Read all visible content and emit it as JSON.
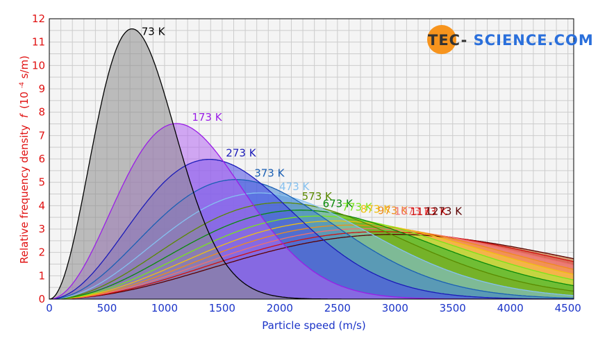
{
  "logo": {
    "part_a": "TEC-",
    "part_b": "SCIENCE.COM",
    "accent": "#f7941d"
  },
  "chart_data": {
    "type": "area",
    "xlabel": "Particle speed (m/s)",
    "ylabel_main": "Relative frequency density",
    "ylabel_f": "f",
    "ylabel_unit_pre": "(10",
    "ylabel_exp": "-4",
    "ylabel_unit_post": " s/m)",
    "xlim": [
      0,
      4550
    ],
    "ylim": [
      0,
      12
    ],
    "x_ticks": [
      0,
      500,
      1000,
      1500,
      2000,
      2500,
      3000,
      3500,
      4000,
      4500
    ],
    "y_ticks": [
      0,
      1,
      2,
      3,
      4,
      5,
      6,
      7,
      8,
      9,
      10,
      11,
      12
    ],
    "grid": true,
    "peak_scale_k": 84.0,
    "series": [
      {
        "name": "73 K",
        "temperature": 73,
        "color": "#000000",
        "fill": "#8c8c8c"
      },
      {
        "name": "173 K",
        "temperature": 173,
        "color": "#9a1ee6",
        "fill": "#b266f0"
      },
      {
        "name": "273 K",
        "temperature": 273,
        "color": "#1a1ab8",
        "fill": "#4a4ae6"
      },
      {
        "name": "373 K",
        "temperature": 373,
        "color": "#1a5fb4",
        "fill": "#3d80d0"
      },
      {
        "name": "473 K",
        "temperature": 473,
        "color": "#85c1f0",
        "fill": "#85c1f0"
      },
      {
        "name": "573 K",
        "temperature": 573,
        "color": "#5a8a00",
        "fill": "#7aaa20"
      },
      {
        "name": "673 K",
        "temperature": 673,
        "color": "#0a8a0a",
        "fill": "#2aaa2a"
      },
      {
        "name": "773 K",
        "temperature": 773,
        "color": "#7ae61a",
        "fill": "#9cf03a"
      },
      {
        "name": "873 K",
        "temperature": 873,
        "color": "#f0c010",
        "fill": "#f7d040"
      },
      {
        "name": "973 K",
        "temperature": 973,
        "color": "#f08c1a",
        "fill": "#f7a040"
      },
      {
        "name": "1073 K",
        "temperature": 1073,
        "color": "#f07070",
        "fill": "#f59090"
      },
      {
        "name": "1173 K",
        "temperature": 1173,
        "color": "#d01010",
        "fill": "#e04040"
      },
      {
        "name": "1273 K",
        "temperature": 1273,
        "color": "#5a0000",
        "fill": "#c05a10"
      }
    ]
  }
}
